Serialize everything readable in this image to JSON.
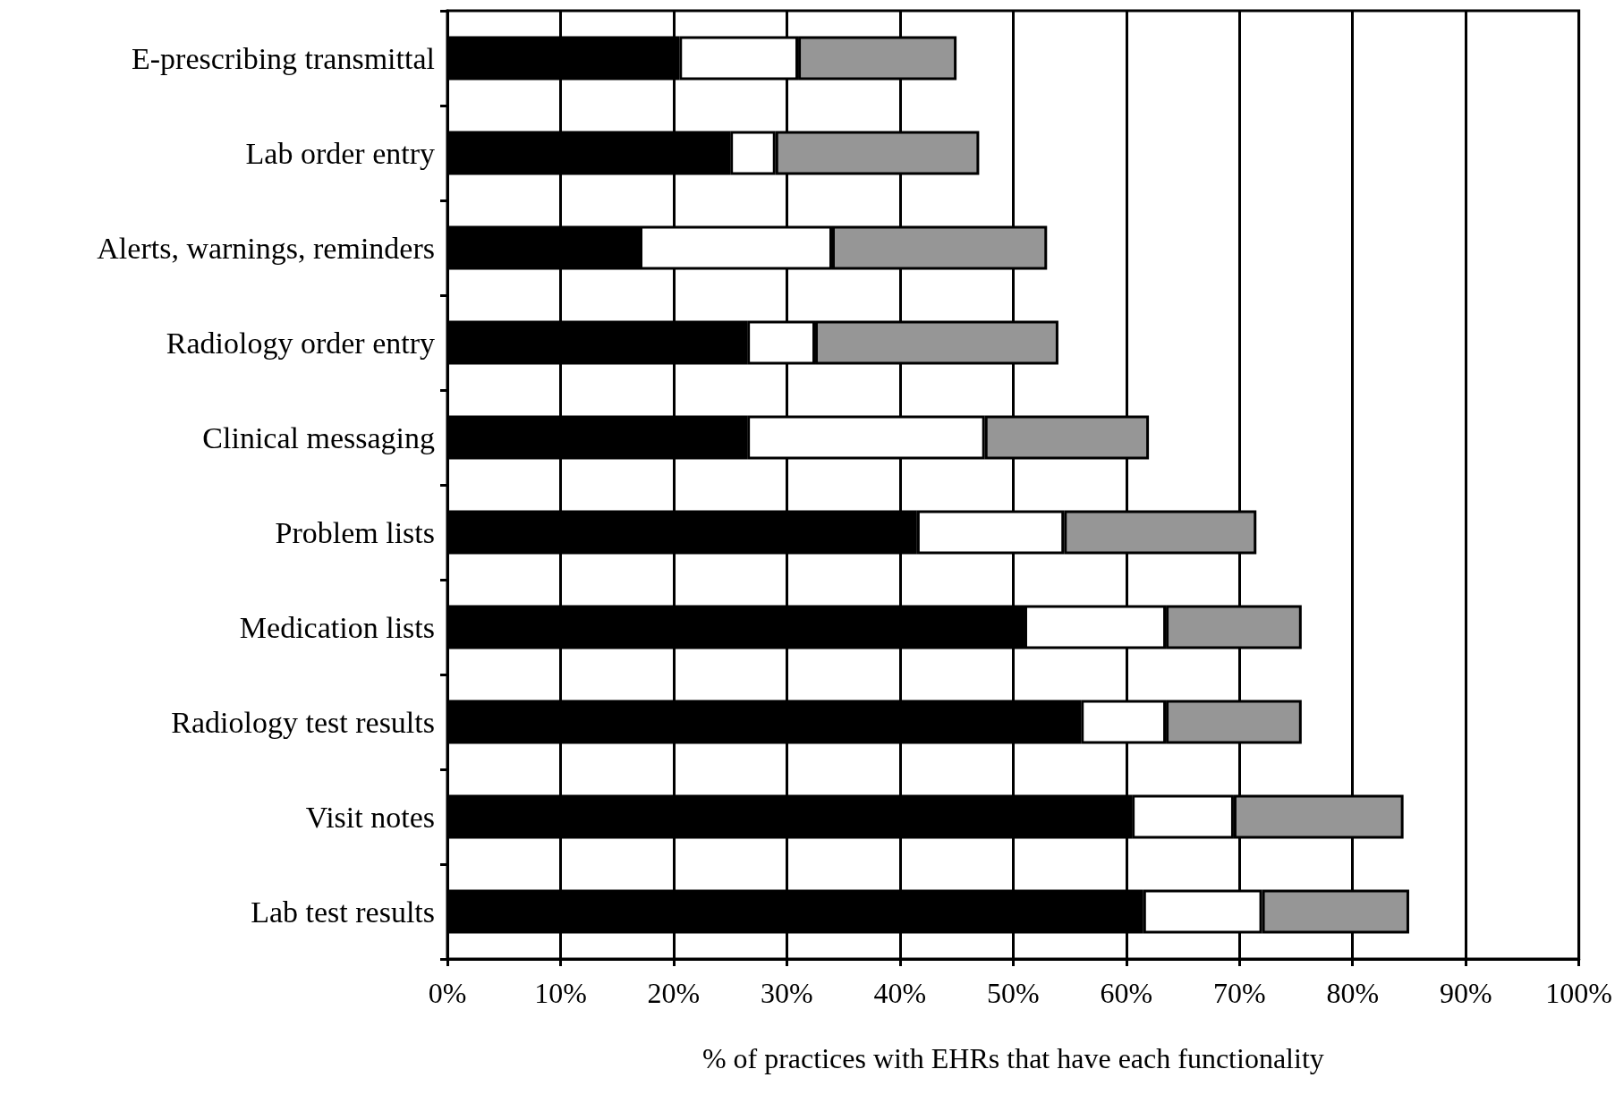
{
  "chart_data": {
    "type": "bar",
    "orientation": "horizontal",
    "stacked": true,
    "xlabel": "% of practices with EHRs that have each functionality",
    "categories": [
      "E-prescribing transmittal",
      "Lab order entry",
      "Alerts, warnings, reminders",
      "Radiology order entry",
      "Clinical messaging",
      "Problem lists",
      "Medication lists",
      "Radiology test results",
      "Visit notes",
      "Lab test results"
    ],
    "series": [
      {
        "color": "#000000",
        "values": [
          20.5,
          25,
          17,
          26.5,
          26.5,
          41.5,
          51,
          56,
          60.5,
          61.5
        ]
      },
      {
        "color": "#ffffff",
        "values": [
          10.5,
          4,
          17,
          6,
          21,
          13,
          12.5,
          7.5,
          9,
          10.5
        ]
      },
      {
        "color": "#969696",
        "values": [
          14,
          18,
          19,
          21.5,
          14.5,
          17,
          12,
          12,
          15,
          13
        ]
      }
    ],
    "xlim": [
      0,
      100
    ],
    "xticks": [
      {
        "value": 0,
        "label": "0%"
      },
      {
        "value": 10,
        "label": "10%"
      },
      {
        "value": 20,
        "label": "20%"
      },
      {
        "value": 30,
        "label": "30%"
      },
      {
        "value": 40,
        "label": "40%"
      },
      {
        "value": 50,
        "label": "50%"
      },
      {
        "value": 60,
        "label": "60%"
      },
      {
        "value": 70,
        "label": "70%"
      },
      {
        "value": 80,
        "label": "80%"
      },
      {
        "value": 90,
        "label": "90%"
      },
      {
        "value": 100,
        "label": "100%"
      }
    ],
    "grid": "x"
  }
}
